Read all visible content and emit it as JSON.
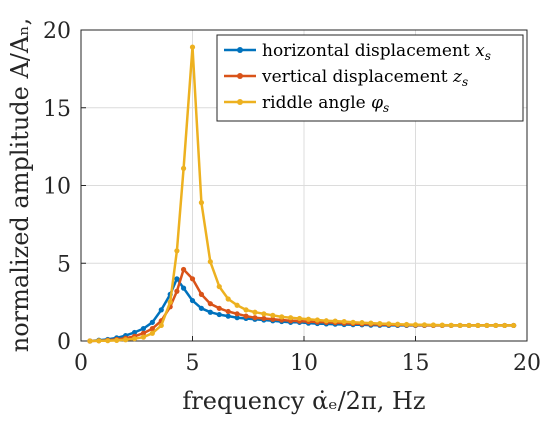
{
  "chart_data": {
    "type": "line",
    "xlabel": "frequency α̇ₑ/2π, Hz",
    "ylabel": "normalized amplitude A/Aₙ,",
    "xlim": [
      0,
      20
    ],
    "ylim": [
      0,
      20
    ],
    "xticks": [
      0,
      5,
      10,
      15,
      20
    ],
    "yticks": [
      0,
      5,
      10,
      15,
      20
    ],
    "grid": true,
    "legend_position": "top-right",
    "x": [
      0.4,
      0.8,
      1.2,
      1.6,
      2.0,
      2.4,
      2.8,
      3.2,
      3.6,
      4.0,
      4.3,
      4.6,
      5.0,
      5.4,
      5.8,
      6.2,
      6.6,
      7.0,
      7.4,
      7.8,
      8.2,
      8.6,
      9.0,
      9.4,
      9.8,
      10.2,
      10.6,
      11.0,
      11.4,
      11.8,
      12.2,
      12.6,
      13.0,
      13.4,
      13.8,
      14.2,
      14.6,
      15.0,
      15.4,
      15.8,
      16.2,
      16.6,
      17.0,
      17.4,
      17.8,
      18.2,
      18.6,
      19.0,
      19.4
    ],
    "series": [
      {
        "name": "horizontal displacement",
        "symbol": "x",
        "subscript": "s",
        "color": "#0072bd",
        "values": [
          0.0,
          0.05,
          0.1,
          0.2,
          0.35,
          0.55,
          0.8,
          1.2,
          2.0,
          3.0,
          4.0,
          3.4,
          2.6,
          2.1,
          1.85,
          1.7,
          1.6,
          1.5,
          1.45,
          1.4,
          1.35,
          1.3,
          1.25,
          1.2,
          1.2,
          1.15,
          1.12,
          1.1,
          1.08,
          1.06,
          1.05,
          1.04,
          1.02,
          1.01,
          1.0,
          1.0,
          1.0,
          1.0,
          1.0,
          1.0,
          1.0,
          1.0,
          1.0,
          1.0,
          1.0,
          1.0,
          1.0,
          1.0,
          1.0
        ]
      },
      {
        "name": "vertical displacement",
        "symbol": "z",
        "subscript": "s",
        "color": "#d95319",
        "values": [
          0.0,
          0.02,
          0.05,
          0.1,
          0.18,
          0.3,
          0.5,
          0.8,
          1.3,
          2.2,
          3.2,
          4.6,
          4.0,
          3.0,
          2.4,
          2.1,
          1.9,
          1.75,
          1.6,
          1.5,
          1.45,
          1.4,
          1.35,
          1.3,
          1.28,
          1.25,
          1.22,
          1.2,
          1.18,
          1.15,
          1.12,
          1.1,
          1.08,
          1.06,
          1.05,
          1.04,
          1.03,
          1.02,
          1.01,
          1.0,
          1.0,
          1.0,
          1.0,
          1.0,
          1.0,
          1.0,
          1.0,
          1.0,
          1.0
        ]
      },
      {
        "name": "riddle angle",
        "symbol": "φ",
        "subscript": "s",
        "color": "#edb120",
        "values": [
          0.0,
          0.01,
          0.02,
          0.04,
          0.08,
          0.15,
          0.25,
          0.5,
          1.0,
          2.5,
          5.8,
          11.1,
          18.9,
          8.9,
          5.1,
          3.5,
          2.7,
          2.3,
          2.0,
          1.85,
          1.75,
          1.65,
          1.55,
          1.5,
          1.45,
          1.4,
          1.35,
          1.3,
          1.28,
          1.25,
          1.2,
          1.18,
          1.15,
          1.12,
          1.1,
          1.08,
          1.06,
          1.05,
          1.04,
          1.03,
          1.02,
          1.01,
          1.0,
          1.0,
          1.0,
          1.0,
          1.0,
          1.0,
          1.0
        ]
      }
    ]
  }
}
